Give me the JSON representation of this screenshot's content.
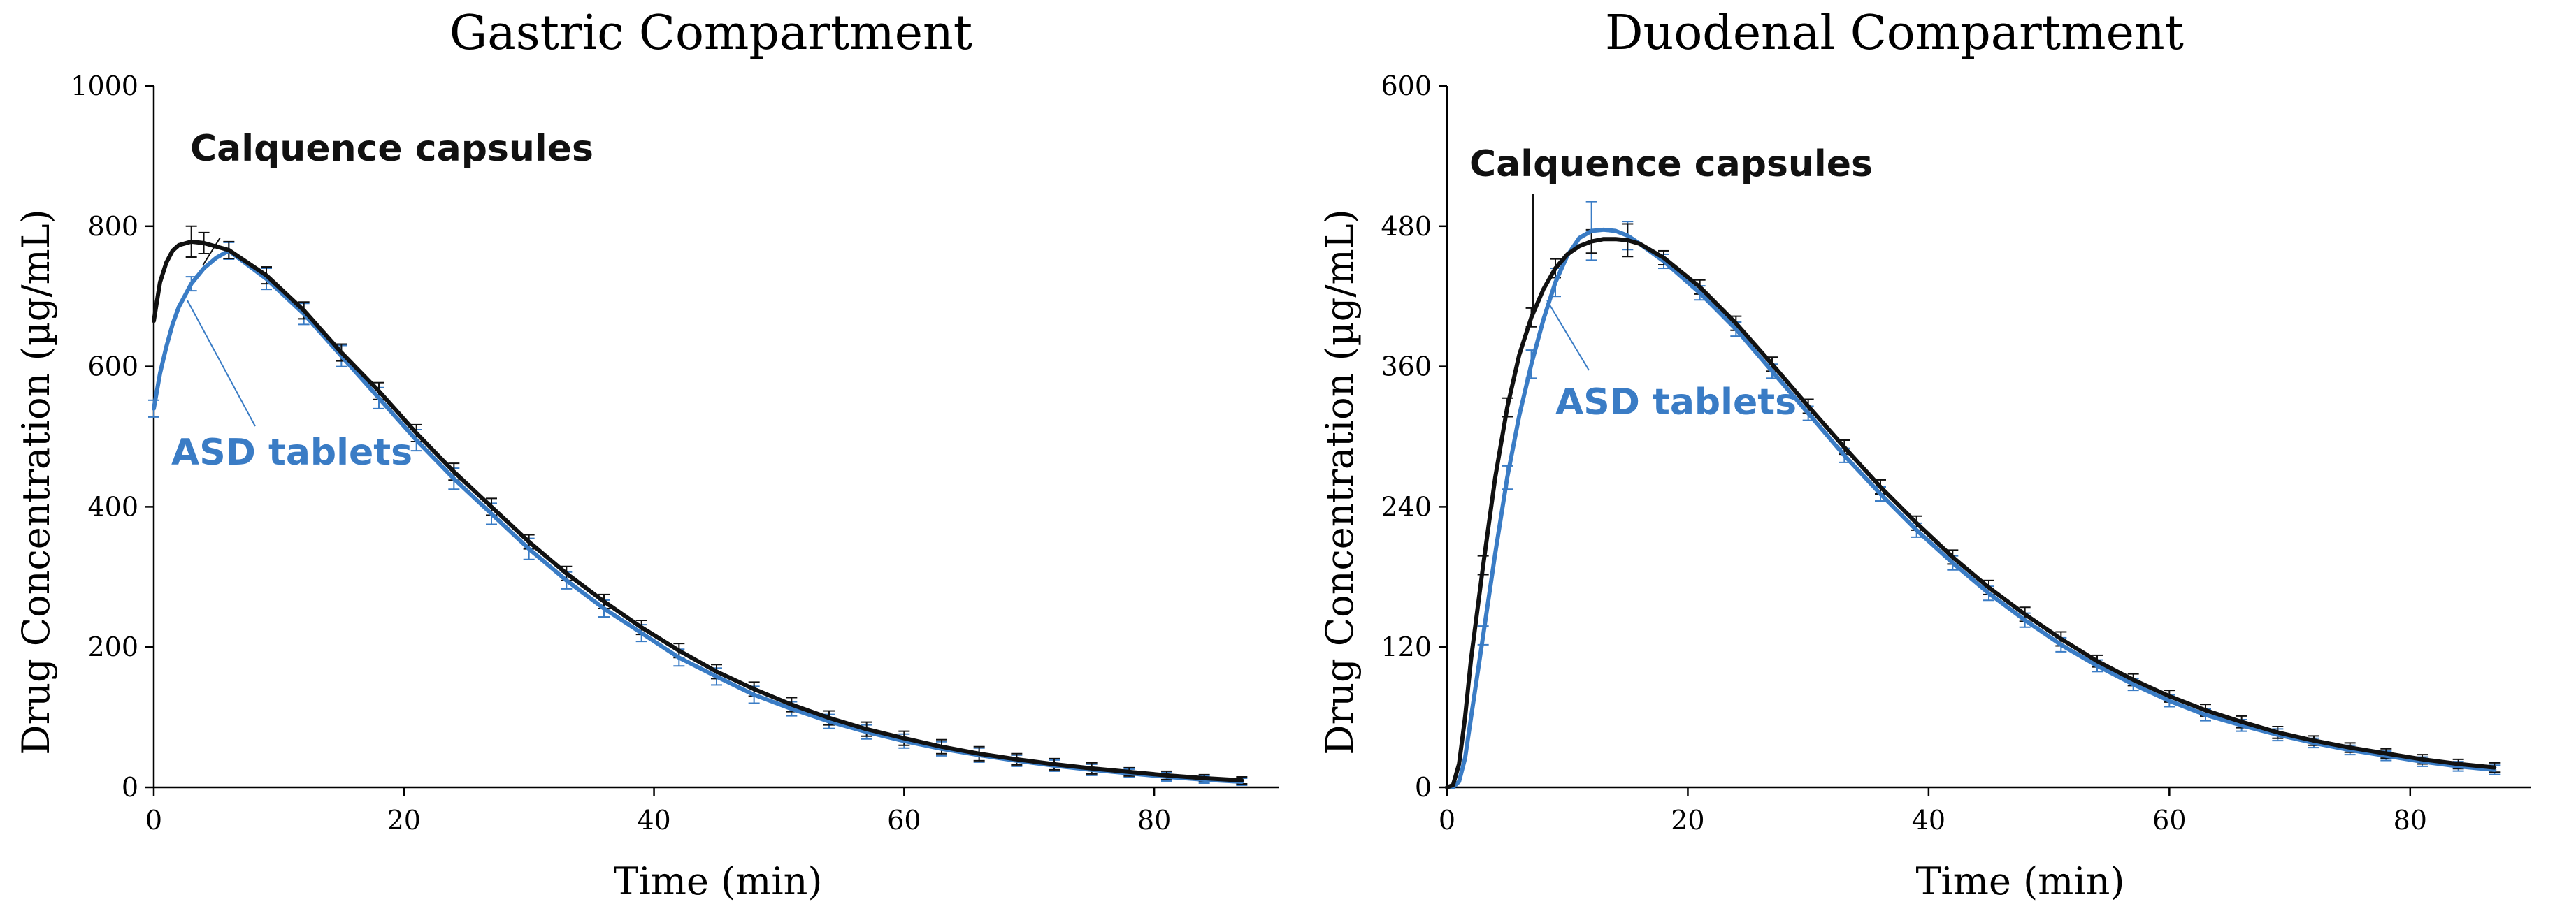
{
  "colors": {
    "calquence": "#111111",
    "asd": "#3a7cc5",
    "axis": "#000000"
  },
  "chart_data": [
    {
      "type": "line",
      "title": "Gastric Compartment",
      "xlabel": "Time (min)",
      "ylabel": "Drug Concentration (µg/mL)",
      "xlim": [
        0,
        90
      ],
      "ylim": [
        0,
        1000
      ],
      "xticks": [
        0,
        20,
        40,
        60,
        80
      ],
      "yticks": [
        0,
        200,
        400,
        600,
        800,
        1000
      ],
      "annotations": [
        {
          "text": "Calquence capsules",
          "series": "Calquence capsules"
        },
        {
          "text": "ASD tablets",
          "series": "ASD tablets"
        }
      ],
      "series": [
        {
          "name": "Calquence capsules",
          "x": [
            0,
            0.5,
            1,
            1.5,
            2,
            3,
            4,
            5,
            6,
            9,
            12,
            15,
            18,
            21,
            24,
            27,
            30,
            33,
            36,
            39,
            42,
            45,
            48,
            51,
            54,
            57,
            60,
            63,
            66,
            69,
            72,
            75,
            78,
            81,
            84,
            87
          ],
          "y": [
            665,
            720,
            748,
            765,
            773,
            778,
            776,
            771,
            766,
            730,
            680,
            620,
            565,
            505,
            450,
            400,
            350,
            305,
            265,
            228,
            195,
            165,
            140,
            118,
            99,
            83,
            70,
            58,
            48,
            40,
            33,
            27,
            22,
            17,
            13,
            10
          ],
          "errors": [
            0,
            0,
            0,
            0,
            0,
            22,
            15,
            0,
            12,
            12,
            12,
            12,
            12,
            12,
            12,
            12,
            10,
            10,
            10,
            10,
            10,
            10,
            10,
            10,
            10,
            10,
            10,
            10,
            10,
            8,
            8,
            8,
            6,
            6,
            5,
            5
          ]
        },
        {
          "name": "ASD tablets",
          "x": [
            0,
            0.5,
            1,
            1.5,
            2,
            3,
            4,
            5,
            6,
            9,
            12,
            15,
            18,
            21,
            24,
            27,
            30,
            33,
            36,
            39,
            42,
            45,
            48,
            51,
            54,
            57,
            60,
            63,
            66,
            69,
            72,
            75,
            78,
            81,
            84,
            87
          ],
          "y": [
            540,
            590,
            628,
            660,
            685,
            718,
            740,
            755,
            765,
            725,
            675,
            615,
            555,
            495,
            440,
            390,
            340,
            295,
            255,
            220,
            185,
            158,
            132,
            112,
            94,
            79,
            66,
            55,
            46,
            38,
            31,
            25,
            20,
            15,
            11,
            8
          ],
          "errors": [
            12,
            0,
            0,
            0,
            0,
            10,
            0,
            0,
            12,
            15,
            15,
            15,
            15,
            15,
            15,
            15,
            15,
            12,
            12,
            12,
            12,
            12,
            12,
            10,
            10,
            10,
            10,
            10,
            10,
            8,
            8,
            8,
            6,
            6,
            5,
            5
          ]
        }
      ]
    },
    {
      "type": "line",
      "title": "Duodenal Compartment",
      "xlabel": "Time (min)",
      "ylabel": "Drug Concentration (µg/mL)",
      "xlim": [
        0,
        90
      ],
      "ylim": [
        0,
        600
      ],
      "xticks": [
        0,
        20,
        40,
        60,
        80
      ],
      "yticks": [
        0,
        120,
        240,
        360,
        480,
        600
      ],
      "annotations": [
        {
          "text": "Calquence capsules",
          "series": "Calquence capsules"
        },
        {
          "text": "ASD tablets",
          "series": "ASD tablets"
        }
      ],
      "series": [
        {
          "name": "Calquence capsules",
          "x": [
            0,
            0.5,
            1,
            1.5,
            2,
            3,
            4,
            5,
            6,
            7,
            8,
            9,
            10,
            11,
            12,
            13,
            14,
            15,
            16,
            18,
            21,
            24,
            27,
            30,
            33,
            36,
            39,
            42,
            45,
            48,
            51,
            54,
            57,
            60,
            63,
            66,
            69,
            72,
            75,
            78,
            81,
            84,
            87
          ],
          "y": [
            0,
            2,
            20,
            60,
            110,
            190,
            265,
            325,
            370,
            402,
            426,
            444,
            456,
            463,
            467,
            469,
            469,
            468,
            465,
            453,
            428,
            397,
            362,
            326,
            291,
            257,
            226,
            197,
            171,
            148,
            127,
            108,
            92,
            78,
            66,
            56,
            47,
            40,
            34,
            29,
            24,
            20,
            17
          ],
          "errors": [
            0,
            0,
            0,
            0,
            0,
            8,
            0,
            8,
            0,
            8,
            0,
            8,
            0,
            0,
            10,
            0,
            0,
            14,
            0,
            6,
            6,
            6,
            6,
            6,
            6,
            6,
            6,
            6,
            6,
            6,
            6,
            5,
            5,
            5,
            5,
            5,
            5,
            4,
            4,
            4,
            4,
            4,
            4
          ]
        },
        {
          "name": "ASD tablets",
          "x": [
            0,
            0.5,
            1,
            1.5,
            2,
            3,
            4,
            5,
            6,
            7,
            8,
            9,
            10,
            11,
            12,
            13,
            14,
            15,
            16,
            18,
            21,
            24,
            27,
            30,
            33,
            36,
            39,
            42,
            45,
            48,
            51,
            54,
            57,
            60,
            63,
            66,
            69,
            72,
            75,
            78,
            81,
            84,
            87
          ],
          "y": [
            0,
            0,
            5,
            25,
            60,
            130,
            200,
            265,
            318,
            362,
            400,
            432,
            455,
            470,
            476,
            477,
            476,
            472,
            465,
            450,
            423,
            392,
            356,
            320,
            284,
            251,
            220,
            192,
            166,
            143,
            122,
            104,
            88,
            74,
            62,
            53,
            45,
            38,
            32,
            27,
            22,
            18,
            15
          ],
          "errors": [
            0,
            0,
            0,
            0,
            0,
            8,
            0,
            10,
            0,
            12,
            0,
            12,
            0,
            0,
            25,
            0,
            0,
            12,
            0,
            6,
            6,
            6,
            6,
            6,
            6,
            6,
            6,
            6,
            6,
            6,
            6,
            5,
            5,
            5,
            5,
            5,
            5,
            4,
            4,
            4,
            4,
            4,
            4
          ]
        }
      ]
    }
  ]
}
